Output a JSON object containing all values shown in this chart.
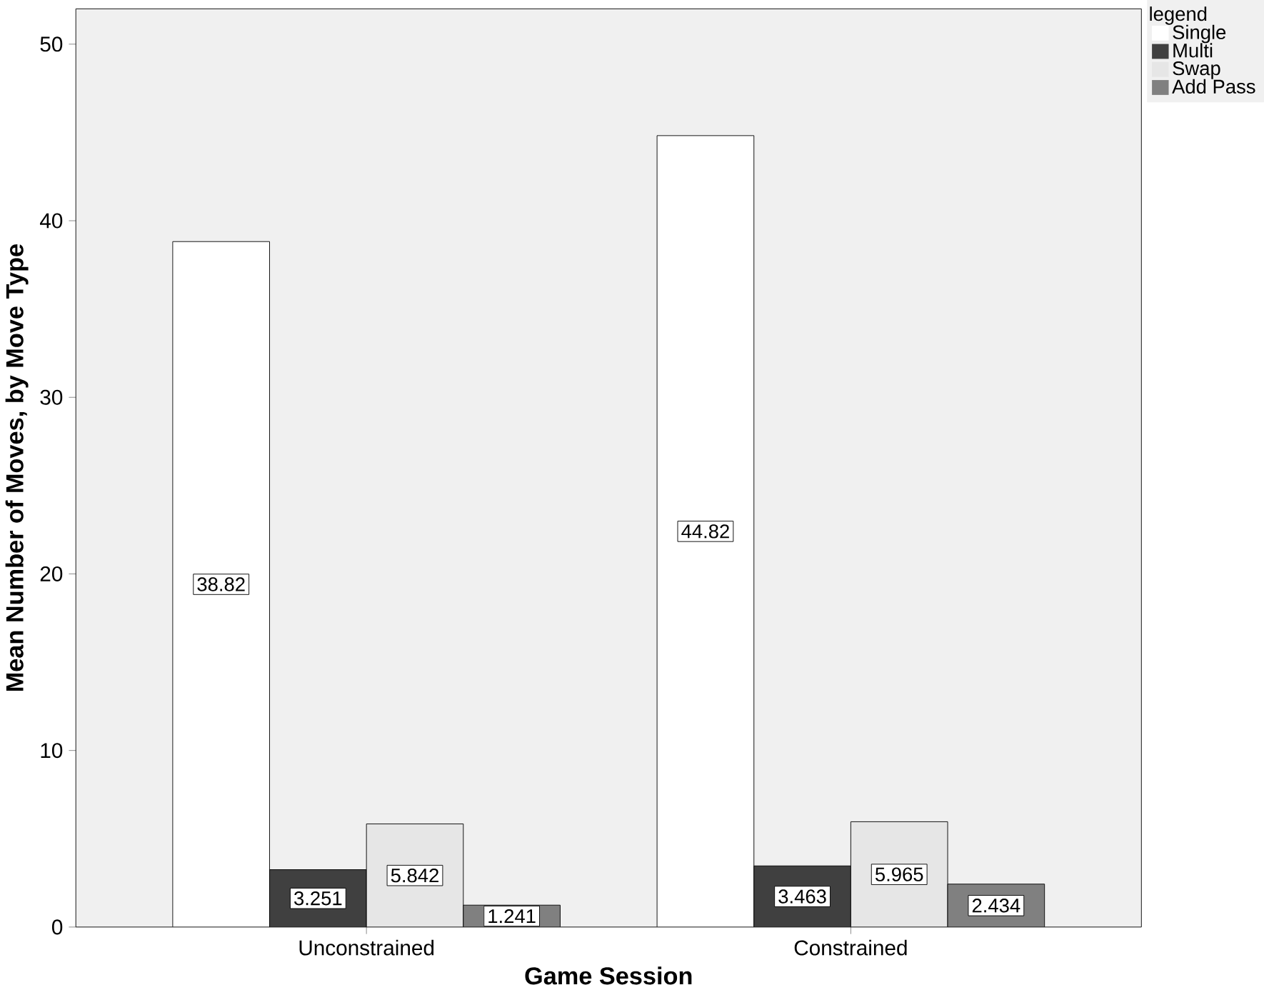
{
  "chart_data": {
    "type": "bar",
    "xlabel": "Game Session",
    "ylabel": "Mean Number of Moves, by Move Type",
    "legend_title": "legend",
    "legend": "top right",
    "categories": [
      "Unconstrained",
      "Constrained"
    ],
    "ylim": [
      0,
      52
    ],
    "yticks": [
      0,
      10,
      20,
      30,
      40,
      50
    ],
    "series": [
      {
        "name": "Single",
        "color": "#ffffff",
        "values": [
          38.82,
          44.82
        ],
        "value_labels": [
          "38.82",
          "44.82"
        ]
      },
      {
        "name": "Multi",
        "color": "#404040",
        "values": [
          3.251,
          3.463
        ],
        "value_labels": [
          "3.251",
          "3.463"
        ]
      },
      {
        "name": "Swap",
        "color": "#e6e6e6",
        "values": [
          5.842,
          5.965
        ],
        "value_labels": [
          "5.842",
          "5.965"
        ]
      },
      {
        "name": "Add Pass",
        "color": "#808080",
        "values": [
          1.241,
          2.434
        ],
        "value_labels": [
          "1.241",
          "2.434"
        ]
      }
    ]
  }
}
